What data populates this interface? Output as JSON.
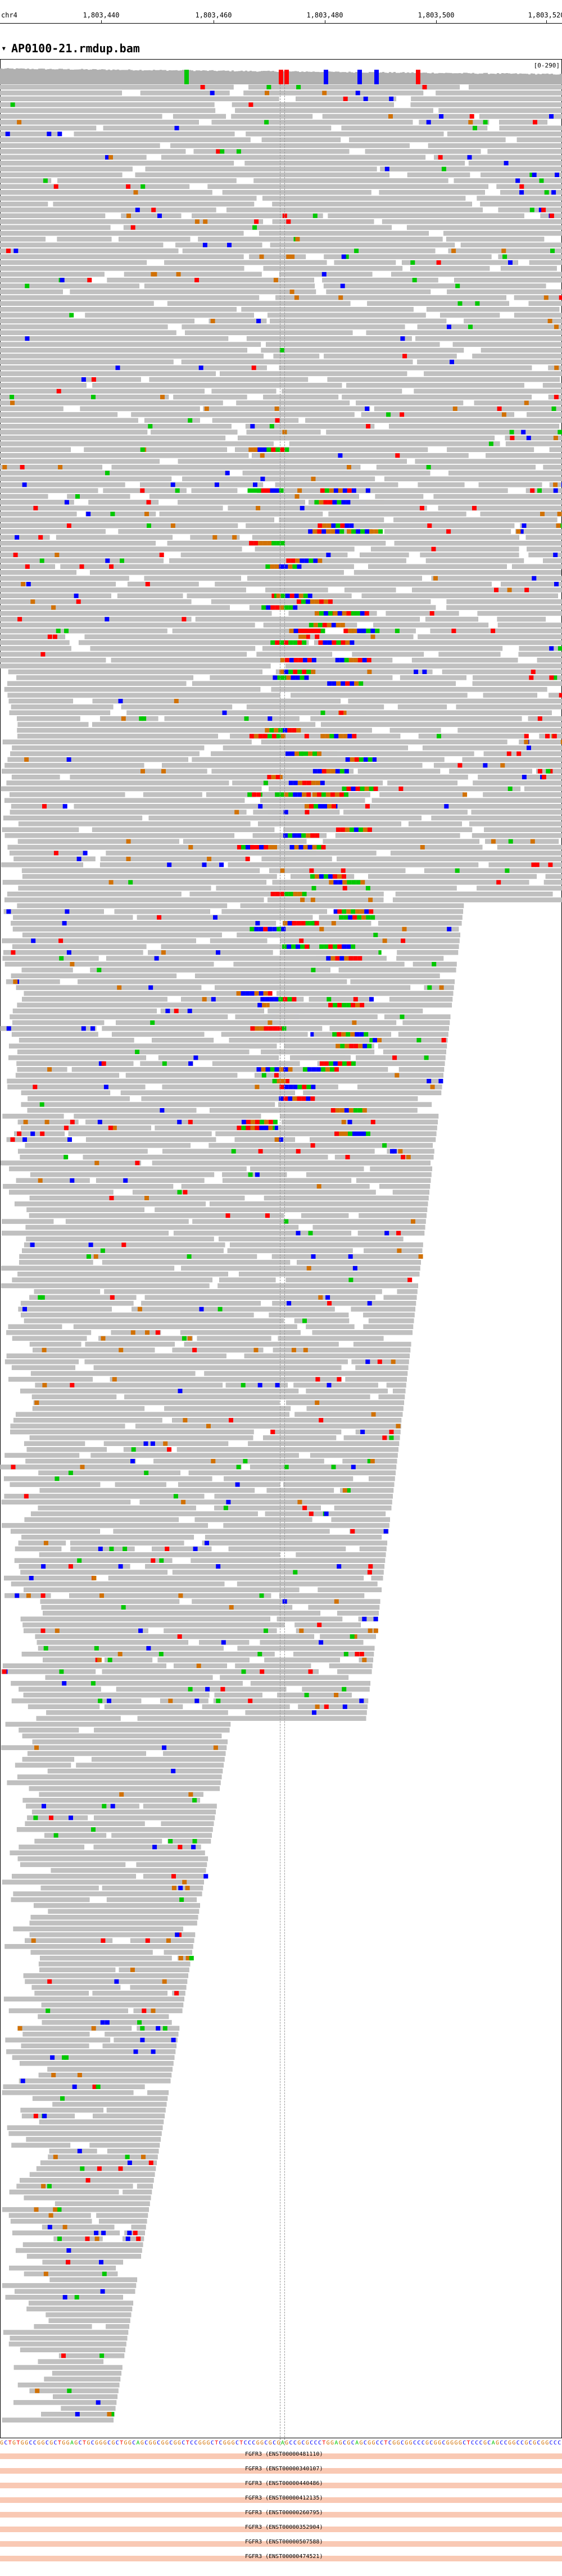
{
  "ruler": {
    "chromosome": "chr4",
    "ticks": [
      "1,803,440",
      "1,803,460",
      "1,803,480",
      "1,803,500",
      "1,803,520"
    ]
  },
  "track": {
    "collapse_glyph": "▾",
    "name": "AP0100-21.rmdup.bam",
    "coverage_range": "[0-290]"
  },
  "colors": {
    "read": "#c0c0c0",
    "read_stroke": "#b4b4b4",
    "mismatch_A": "#00c800",
    "mismatch_C": "#0000ff",
    "mismatch_G": "#d17105",
    "mismatch_T": "#ff0000",
    "insertion": "#7f00ff",
    "annotation": "#f9c9b4",
    "coverage": "#b0b0b0"
  },
  "reference_sequence": "GCTGTGGCCGGCGCTGGAGCTGCGGGCGCTGGCAGCGGCGGCGGCTCCGGGCTCGGGCTCCCGGCGCGAGCCGCGCCCTGGAGCGCAGCGGCCTCGGCGGCCCGCGGCGGGGCTCCCGCAGCCGGCCGCGCGGCCC",
  "annotations": [
    "FGFR3 (ENST00000481110)",
    "FGFR3 (ENST00000340107)",
    "FGFR3 (ENST00000440486)",
    "FGFR3 (ENST00000412135)",
    "FGFR3 (ENST00000260795)",
    "FGFR3 (ENST00000352904)",
    "FGFR3 (ENST00000507588)",
    "FGFR3 (ENST00000474521)"
  ]
}
